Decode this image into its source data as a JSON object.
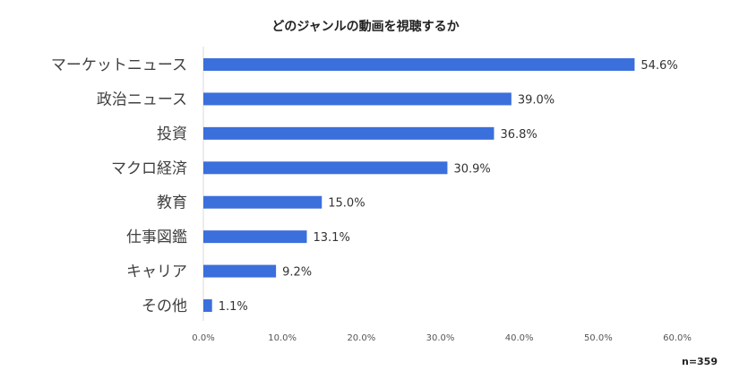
{
  "chart_data": {
    "type": "bar",
    "orientation": "horizontal",
    "title": "どのジャンルの動画を視聴するか",
    "categories": [
      "マーケットニュース",
      "政治ニュース",
      "投資",
      "マクロ経済",
      "教育",
      "仕事図鑑",
      "キャリア",
      "その他"
    ],
    "values": [
      54.6,
      39.0,
      36.8,
      30.9,
      15.0,
      13.1,
      9.2,
      1.1
    ],
    "data_labels": [
      "54.6%",
      "39.0%",
      "36.8%",
      "30.9%",
      "15.0%",
      "13.1%",
      "9.2%",
      "1.1%"
    ],
    "xlim": [
      0,
      60
    ],
    "x_ticks": [
      0,
      10,
      20,
      30,
      40,
      50,
      60
    ],
    "x_tick_labels": [
      "0.0%",
      "10.0%",
      "20.0%",
      "30.0%",
      "40.0%",
      "50.0%",
      "60.0%"
    ],
    "xlabel": "",
    "ylabel": "",
    "grid": false,
    "legend": "none",
    "bar_color": "#3b6fdc",
    "note": "n=359"
  }
}
